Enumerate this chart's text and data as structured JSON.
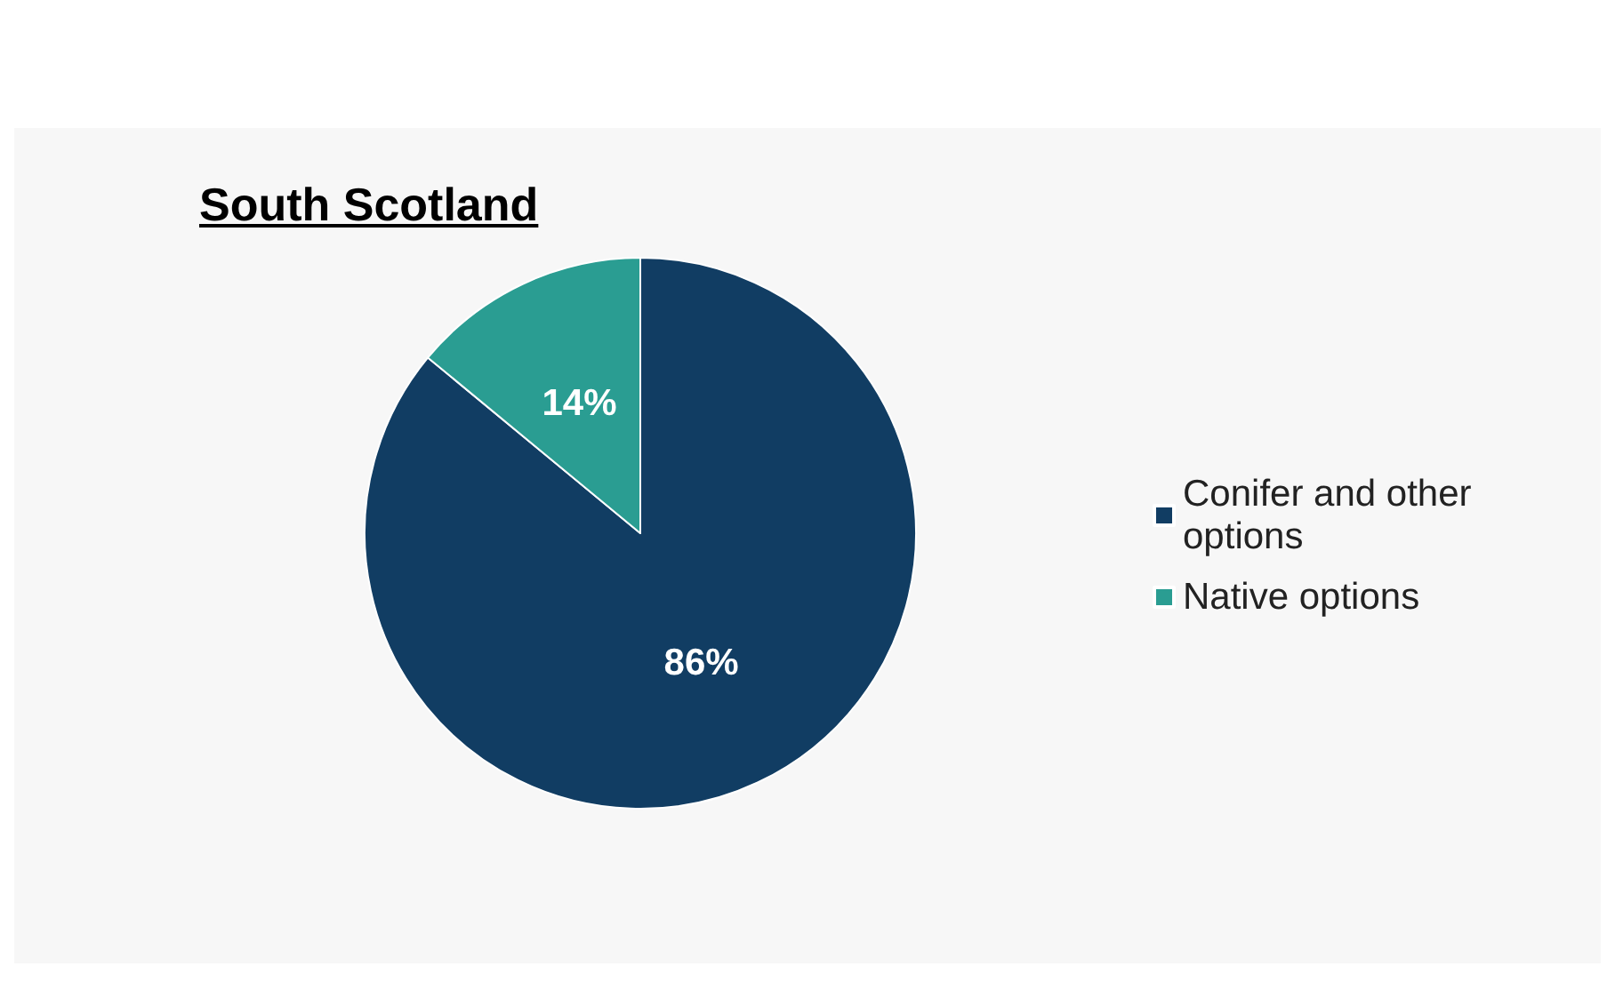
{
  "chart_data": {
    "type": "pie",
    "title": "South Scotland",
    "categories": [
      "Conifer and other options",
      "Native options"
    ],
    "values": [
      86,
      14
    ],
    "colors": [
      "#113d63",
      "#2a9d92"
    ],
    "value_labels": [
      "86%",
      "14%"
    ],
    "legend": "right"
  }
}
